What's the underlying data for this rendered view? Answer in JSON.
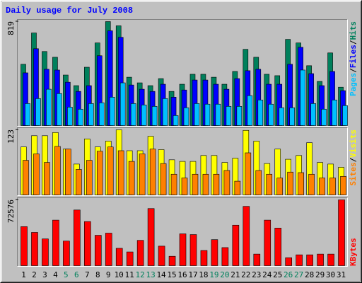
{
  "chart_data": [
    {
      "type": "bar",
      "title": "Daily usage for July 2008",
      "label_separator": "/",
      "series": [
        {
          "name": "Hits",
          "color": "#00805c",
          "values": [
            485,
            730,
            585,
            540,
            401,
            318,
            462,
            652,
            819,
            786,
            384,
            340,
            318,
            373,
            273,
            329,
            407,
            407,
            384,
            329,
            429,
            602,
            540,
            407,
            396,
            680,
            652,
            474,
            351,
            574,
            306
          ]
        },
        {
          "name": "Files",
          "color": "#0000ff",
          "values": [
            418,
            607,
            446,
            440,
            345,
            273,
            318,
            552,
            747,
            696,
            323,
            290,
            273,
            329,
            228,
            284,
            362,
            362,
            329,
            290,
            373,
            435,
            446,
            329,
            329,
            485,
            618,
            412,
            318,
            429,
            279
          ]
        },
        {
          "name": "Pages",
          "color": "#00c0ff",
          "values": [
            178,
            217,
            290,
            256,
            150,
            134,
            178,
            184,
            228,
            340,
            178,
            167,
            156,
            217,
            84,
            145,
            178,
            173,
            173,
            156,
            156,
            240,
            206,
            173,
            145,
            145,
            440,
            178,
            134,
            206,
            162
          ]
        }
      ],
      "ylim": [
        0,
        819
      ],
      "yticks": [
        819
      ]
    },
    {
      "type": "bar",
      "label_separator": "/",
      "series": [
        {
          "name": "Visits",
          "color": "#ffff00",
          "values": [
            91,
            112,
            112,
            118,
            87,
            59,
            106,
            91,
            102,
            123,
            84,
            84,
            111,
            86,
            67,
            64,
            64,
            75,
            75,
            62,
            70,
            122,
            102,
            60,
            87,
            68,
            75,
            99,
            62,
            59,
            53
          ]
        },
        {
          "name": "Sites",
          "color": "#ff8000",
          "values": [
            66,
            78,
            62,
            92,
            87,
            49,
            66,
            83,
            91,
            84,
            64,
            78,
            87,
            60,
            40,
            33,
            40,
            40,
            40,
            47,
            27,
            80,
            47,
            40,
            33,
            44,
            43,
            40,
            33,
            33,
            36
          ]
        }
      ],
      "ylim": [
        0,
        123
      ],
      "yticks": [
        123
      ]
    },
    {
      "type": "bar",
      "series": [
        {
          "name": "KBytes",
          "color": "#ff0000",
          "values": [
            43389,
            37078,
            29978,
            50490,
            27611,
            61534,
            48912,
            33922,
            36289,
            19722,
            15778,
            28400,
            63112,
            22089,
            11045,
            35500,
            34711,
            17356,
            29189,
            20511,
            44967,
            65479,
            13411,
            50490,
            41811,
            9467,
            12622,
            12622,
            13411,
            13411,
            72576
          ]
        }
      ],
      "ylim": [
        0,
        72576
      ],
      "yticks": [
        72576
      ],
      "categories": [
        "1",
        "2",
        "3",
        "4",
        "5",
        "6",
        "7",
        "8",
        "9",
        "10",
        "11",
        "12",
        "13",
        "14",
        "15",
        "16",
        "17",
        "18",
        "19",
        "20",
        "21",
        "22",
        "23",
        "24",
        "25",
        "26",
        "27",
        "28",
        "29",
        "30",
        "31"
      ],
      "category_colors": [
        "#000000",
        "#000000",
        "#000000",
        "#000000",
        "#00805c",
        "#00805c",
        "#000000",
        "#000000",
        "#000000",
        "#000000",
        "#000000",
        "#00805c",
        "#00805c",
        "#000000",
        "#000000",
        "#000000",
        "#000000",
        "#000000",
        "#00805c",
        "#00805c",
        "#000000",
        "#000000",
        "#000000",
        "#000000",
        "#000000",
        "#00805c",
        "#00805c",
        "#000000",
        "#000000",
        "#000000",
        "#000000"
      ]
    }
  ]
}
